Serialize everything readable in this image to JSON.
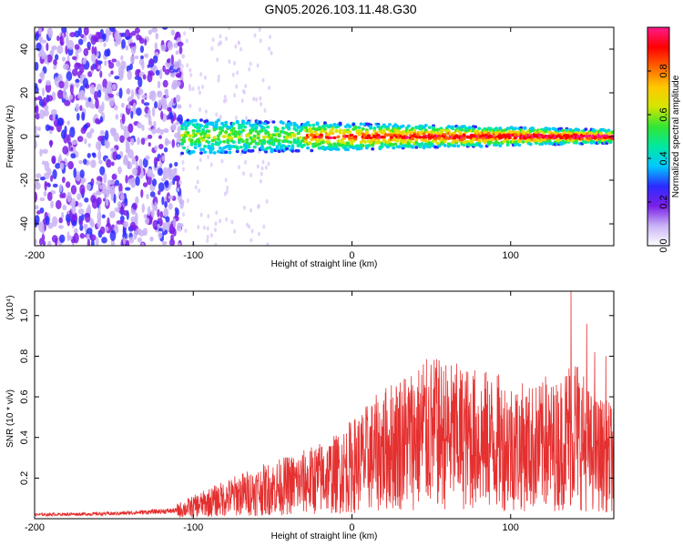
{
  "title": "GN05.2026.103.11.48.G30",
  "chart_data": [
    {
      "type": "heatmap",
      "xlabel": "Height of straight line (km)",
      "ylabel": "Frequency (Hz)",
      "xlim": [
        -200,
        165
      ],
      "ylim": [
        -50,
        50
      ],
      "x_ticks": [
        -200,
        -100,
        0,
        100
      ],
      "x_tick_labels": [
        "-200",
        "-100",
        "0",
        "100"
      ],
      "y_ticks": [
        -40,
        -20,
        0,
        20,
        40
      ],
      "y_tick_labels": [
        "-40",
        "-20",
        "0",
        "20",
        "40"
      ],
      "colorbar": {
        "label": "Normalized spectral amplitude",
        "range": [
          0,
          1
        ],
        "ticks": [
          0.0,
          0.2,
          0.4,
          0.6,
          0.8
        ],
        "tick_labels": [
          "0.0",
          "0.2",
          "0.4",
          "0.6",
          "0.8"
        ],
        "colors": [
          "#ffffff",
          "#c9b3f5",
          "#7b1fe8",
          "#2b2bff",
          "#00c8ff",
          "#00e8a0",
          "#33e633",
          "#d4e600",
          "#ffc800",
          "#ff6400",
          "#ff0000",
          "#ff1a8c"
        ]
      },
      "description_values": {
        "noise_region_x": [
          -200,
          -107
        ],
        "signal_band_center_hz": 0,
        "signal_band_halfwidth_hz_near_minus100": 8,
        "signal_band_halfwidth_hz_near_plus150": 3
      }
    },
    {
      "type": "line",
      "xlabel": "Height of straight line (km)",
      "ylabel": "SNR (10 * v/v)",
      "scale_label": "(x10⁴)",
      "xlim": [
        -200,
        165
      ],
      "ylim": [
        0,
        1.12
      ],
      "x_ticks": [
        -200,
        -100,
        0,
        100
      ],
      "x_tick_labels": [
        "-200",
        "-100",
        "0",
        "100"
      ],
      "y_ticks": [
        0.2,
        0.4,
        0.6,
        0.8,
        1.0
      ],
      "y_tick_labels": [
        "0.2",
        "0.4",
        "0.6",
        "0.8",
        "1.0"
      ],
      "series": [
        {
          "color": "#e53030",
          "trend_x": [
            -200,
            -150,
            -110,
            -90,
            -70,
            -50,
            -30,
            -10,
            10,
            30,
            50,
            70,
            90,
            110,
            130,
            140,
            150,
            165
          ],
          "trend_y": [
            0.02,
            0.025,
            0.04,
            0.08,
            0.12,
            0.15,
            0.18,
            0.22,
            0.3,
            0.38,
            0.42,
            0.4,
            0.38,
            0.35,
            0.36,
            0.45,
            0.33,
            0.3
          ],
          "peaks_x": [
            45,
            53,
            122,
            138,
            148,
            153,
            160
          ],
          "peaks_y": [
            0.76,
            0.72,
            0.7,
            1.12,
            0.96,
            0.82,
            0.8
          ]
        }
      ]
    }
  ]
}
